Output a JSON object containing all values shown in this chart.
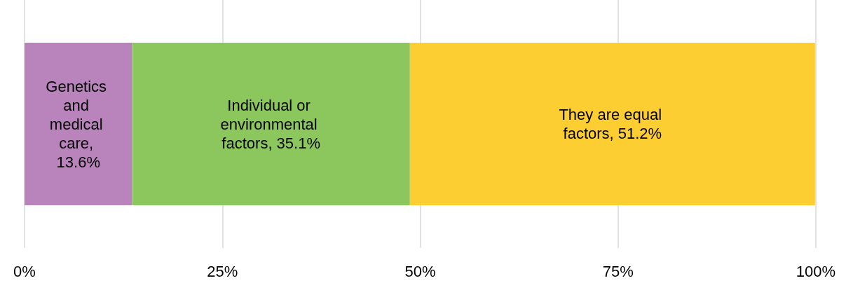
{
  "chart_data": {
    "type": "bar",
    "orientation": "horizontal",
    "stacked": true,
    "categories": [
      null
    ],
    "xlim": [
      0,
      100
    ],
    "xticks": [
      {
        "value": 0,
        "label": "0%"
      },
      {
        "value": 25,
        "label": "25%"
      },
      {
        "value": 50,
        "label": "50%"
      },
      {
        "value": 75,
        "label": "75%"
      },
      {
        "value": 100,
        "label": "100%"
      }
    ],
    "grid": "x",
    "series": [
      {
        "color": "#b983bb",
        "values": [
          13.6
        ],
        "value_labels": [
          "Genetics and medical care, 13.6%"
        ]
      },
      {
        "color": "#8cc75d",
        "values": [
          35.1
        ],
        "value_labels": [
          "Individual or environmental factors, 35.1%"
        ]
      },
      {
        "color": "#fdce31",
        "values": [
          51.2
        ],
        "value_labels": [
          "They are equal factors, 51.2%"
        ]
      }
    ]
  }
}
